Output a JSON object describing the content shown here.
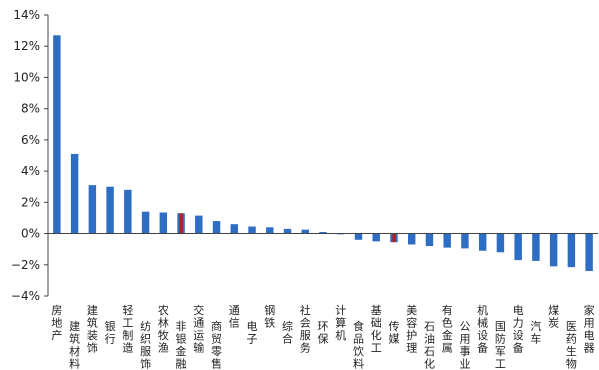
{
  "chart_data": {
    "type": "bar",
    "title": "",
    "xlabel": "",
    "ylabel": "",
    "ylim": [
      -4,
      14
    ],
    "yticks": [
      -4,
      -2,
      0,
      2,
      4,
      6,
      8,
      10,
      12,
      14
    ],
    "ytick_labels": [
      "−4%",
      "−2%",
      "0%",
      "2%",
      "4%",
      "6%",
      "8%",
      "10%",
      "12%",
      "14%"
    ],
    "grid": false,
    "legend": "none",
    "colors": {
      "default": "#2E6DC4",
      "highlight": "#B22222"
    },
    "highlight_categories": [
      "非银金融",
      "传媒"
    ],
    "categories": [
      "房地产",
      "建筑材料",
      "建筑装饰",
      "银行",
      "轻工制造",
      "纺织服饰",
      "农林牧渔",
      "非银金融",
      "交通运输",
      "商贸零售",
      "通信",
      "电子",
      "钢铁",
      "综合",
      "社会服务",
      "环保",
      "计算机",
      "食品饮料",
      "基础化工",
      "传媒",
      "美容护理",
      "石油石化",
      "有色金属",
      "公用事业",
      "机械设备",
      "国防军工",
      "电力设备",
      "汽车",
      "煤炭",
      "医药生物",
      "家用电器"
    ],
    "values": [
      12.7,
      5.1,
      3.1,
      3.0,
      2.8,
      1.4,
      1.35,
      1.3,
      1.15,
      0.8,
      0.6,
      0.45,
      0.4,
      0.3,
      0.25,
      0.1,
      -0.05,
      -0.4,
      -0.5,
      -0.55,
      -0.7,
      -0.8,
      -0.9,
      -0.95,
      -1.1,
      -1.2,
      -1.7,
      -1.75,
      -2.1,
      -2.15,
      -2.4
    ]
  }
}
